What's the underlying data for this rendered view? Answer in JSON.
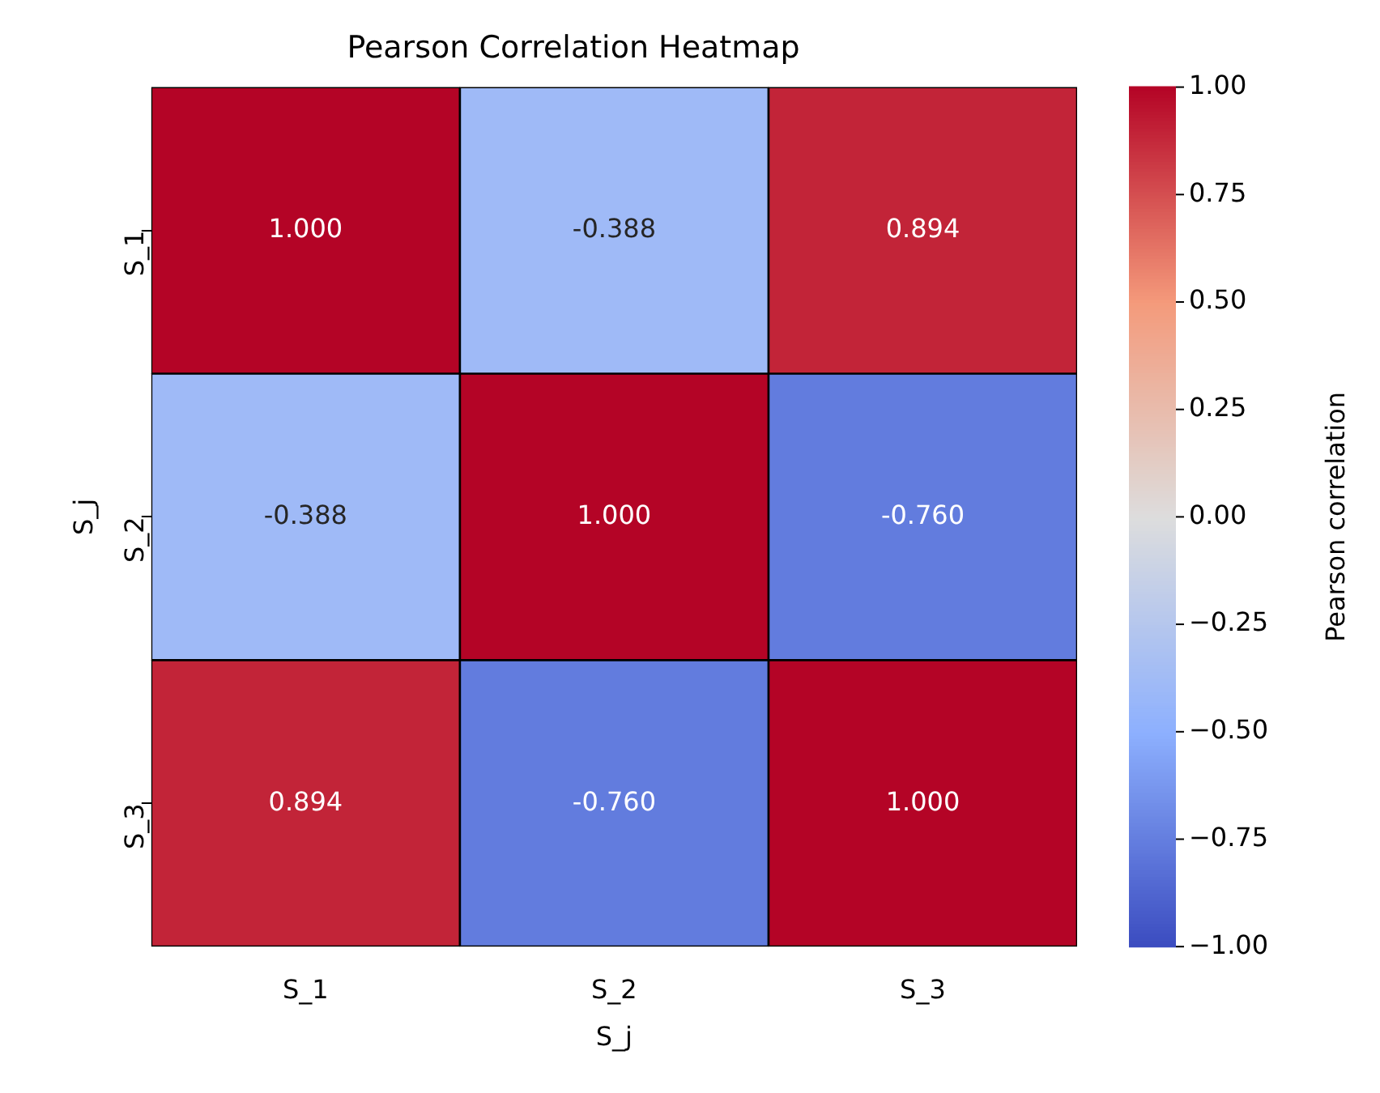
{
  "chart_data": {
    "type": "heatmap",
    "title": "Pearson Correlation Heatmap",
    "xlabel": "S_j",
    "ylabel": "S_j",
    "clabel": "Pearson correlation",
    "categories": [
      "S_1",
      "S_2",
      "S_3"
    ],
    "y_categories": [
      "S_1",
      "S_2",
      "S_3"
    ],
    "cells": [
      [
        1.0,
        -0.388,
        0.894
      ],
      [
        -0.388,
        1.0,
        -0.76
      ],
      [
        0.894,
        -0.76,
        1.0
      ]
    ],
    "cell_labels": [
      [
        "1.000",
        "-0.388",
        "0.894"
      ],
      [
        "-0.388",
        "1.000",
        "-0.760"
      ],
      [
        "0.894",
        "-0.760",
        "1.000"
      ]
    ],
    "clim": [
      -1,
      1
    ],
    "cticks": [
      {
        "value": 1,
        "label": "1.00"
      },
      {
        "value": 0.75,
        "label": "0.75"
      },
      {
        "value": 0.5,
        "label": "0.50"
      },
      {
        "value": 0.25,
        "label": "0.25"
      },
      {
        "value": 0,
        "label": "0.00"
      },
      {
        "value": -0.25,
        "label": "−0.25"
      },
      {
        "value": -0.5,
        "label": "−0.50"
      },
      {
        "value": -0.75,
        "label": "−0.75"
      },
      {
        "value": -1,
        "label": "−1.00"
      }
    ]
  }
}
